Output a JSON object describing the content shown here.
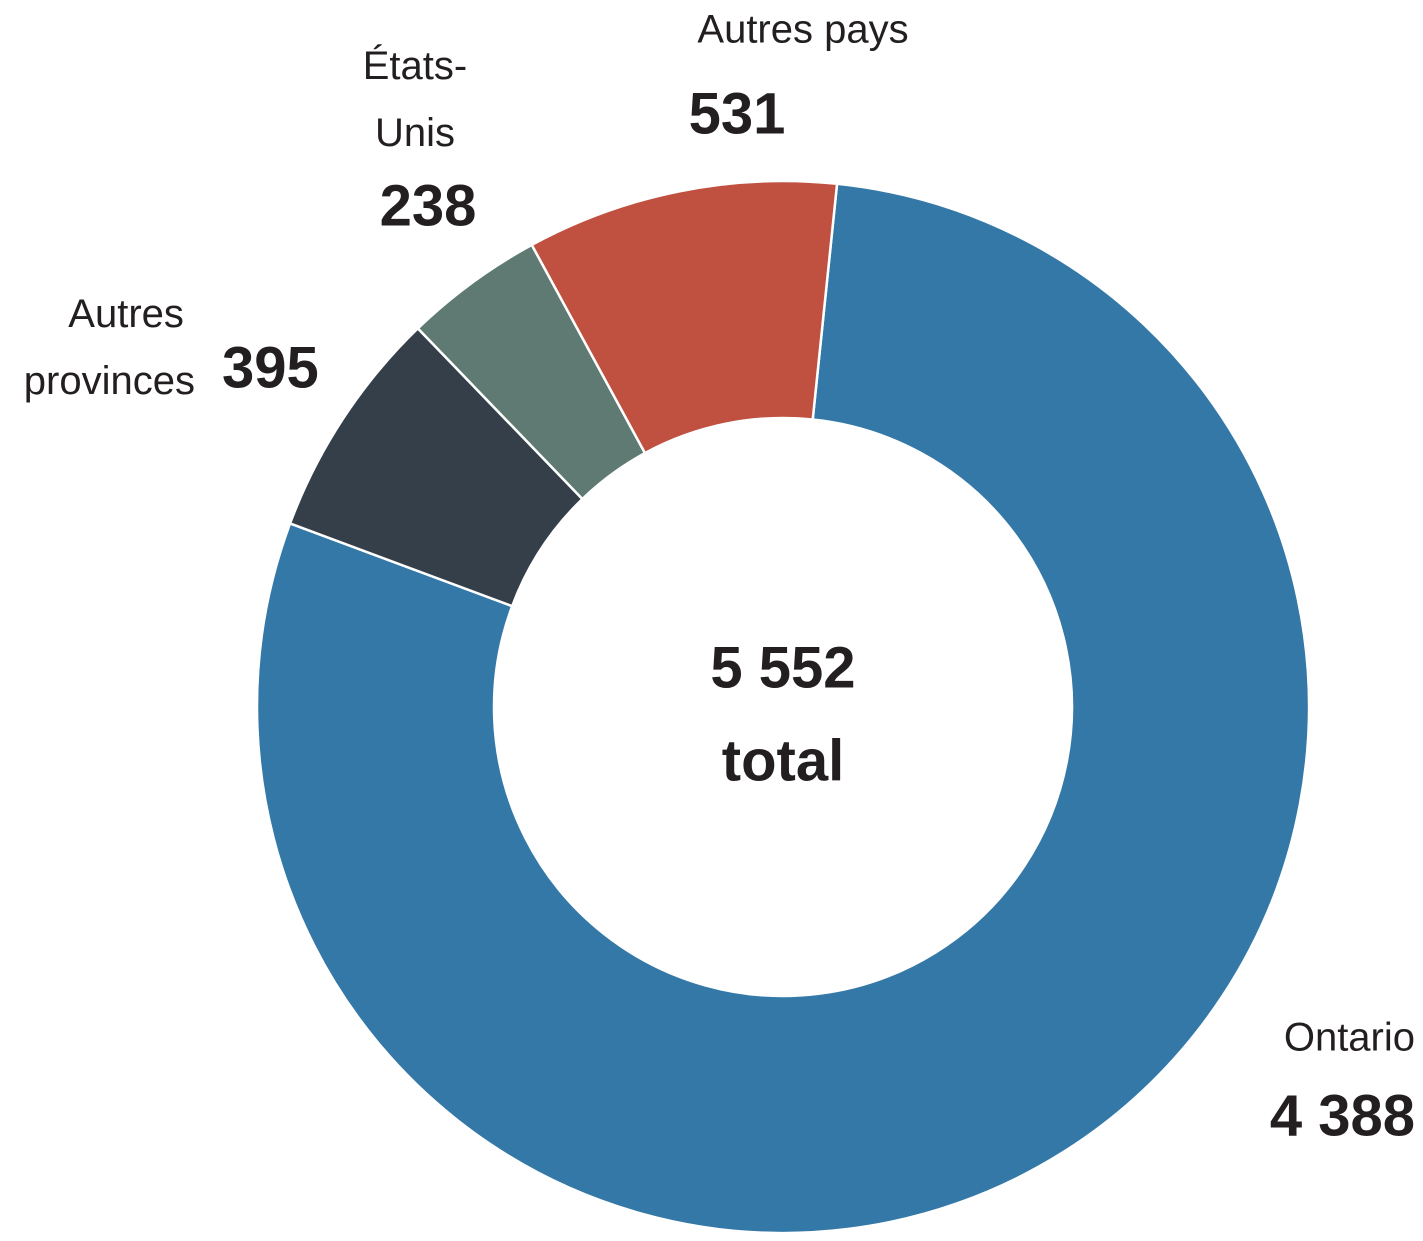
{
  "chart_data": {
    "type": "donut",
    "categories": [
      "Ontario",
      "Autres provinces",
      "États-Unis",
      "Autres pays"
    ],
    "values": [
      4388,
      395,
      238,
      531
    ],
    "value_labels": [
      "4 388",
      "395",
      "238",
      "531"
    ],
    "colors": [
      "#3478a8",
      "#343f4a",
      "#5f7a72",
      "#c05140"
    ],
    "total": {
      "value": 5552,
      "label": "5 552"
    },
    "total_caption": "total"
  }
}
